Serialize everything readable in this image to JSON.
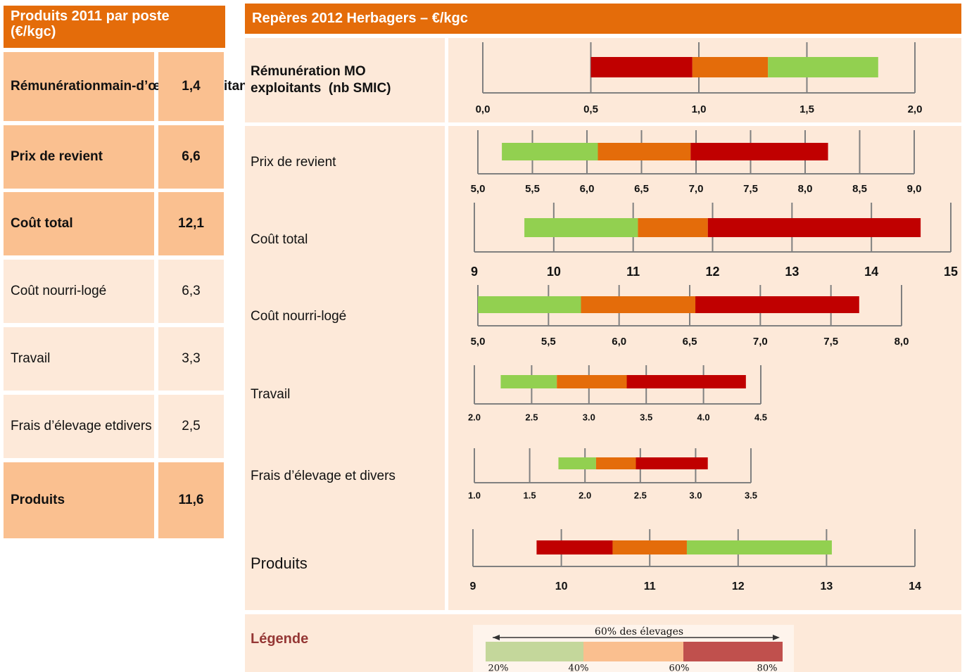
{
  "left_table": {
    "title": [
      "Produits 2011 par poste",
      "(€/kgc)"
    ],
    "rows": [
      {
        "label": [
          "Rémunération",
          "main-d’œuvre",
          "exploitants",
          " (nb SMIC)"
        ],
        "value": "1,4",
        "emphasis": true
      },
      {
        "label": "Prix de revient",
        "value": "6,6",
        "emphasis": true
      },
      {
        "label": "Coût total",
        "value": "12,1",
        "emphasis": true
      },
      {
        "label": "Coût nourri-logé",
        "value": "6,3",
        "emphasis": false
      },
      {
        "label": "Travail",
        "value": "3,3",
        "emphasis": false
      },
      {
        "label": [
          "Frais d’élevage et",
          "divers"
        ],
        "value": "2,5",
        "emphasis": false
      },
      {
        "label": "Produits",
        "value": "11,6",
        "emphasis": true
      }
    ]
  },
  "right_panel": {
    "title": "Repères 2012 Herbagers – €/kgc",
    "charts": [
      {
        "type": "bar",
        "label": [
          "Rémunération MO",
          "exploitants  (nb SMIC)"
        ],
        "emphasis": true,
        "xlim": [
          0,
          2
        ],
        "xticks": [
          {
            "value": 0,
            "label": "0,0"
          },
          {
            "value": 0.5,
            "label": "0,5"
          },
          {
            "value": 1,
            "label": "1,0"
          },
          {
            "value": 1.5,
            "label": "1,5"
          },
          {
            "value": 2,
            "label": "2,0"
          }
        ],
        "boundaries": [
          0.5,
          0.97,
          1.32,
          1.83
        ],
        "colors": [
          "#c00000",
          "#e46c0a",
          "#92d050"
        ]
      },
      {
        "type": "bar",
        "label": "Prix de revient",
        "emphasis": false,
        "xlim": [
          5,
          9
        ],
        "xticks": [
          {
            "value": 5,
            "label": "5,0"
          },
          {
            "value": 5.5,
            "label": "5,5"
          },
          {
            "value": 6,
            "label": "6,0"
          },
          {
            "value": 6.5,
            "label": "6,5"
          },
          {
            "value": 7,
            "label": "7,0"
          },
          {
            "value": 7.5,
            "label": "7,5"
          },
          {
            "value": 8,
            "label": "8,0"
          },
          {
            "value": 8.5,
            "label": "8,5"
          },
          {
            "value": 9,
            "label": "9,0"
          }
        ],
        "boundaries": [
          5.22,
          6.1,
          6.95,
          8.21
        ],
        "colors": [
          "#92d050",
          "#e46c0a",
          "#c00000"
        ]
      },
      {
        "type": "bar",
        "label": "Coût total",
        "emphasis": false,
        "xlim": [
          9,
          15
        ],
        "xticks": [
          9,
          10,
          11,
          12,
          13,
          14,
          15
        ],
        "boundaries": [
          9.63,
          11.06,
          11.94,
          14.62
        ],
        "colors": [
          "#92d050",
          "#e46c0a",
          "#c00000"
        ]
      },
      {
        "type": "bar",
        "label": "Coût nourri-logé",
        "emphasis": false,
        "xlim": [
          5,
          8
        ],
        "xticks": [
          {
            "value": 5,
            "label": "5,0"
          },
          {
            "value": 5.5,
            "label": "5,5"
          },
          {
            "value": 6,
            "label": "6,0"
          },
          {
            "value": 6.5,
            "label": "6,5"
          },
          {
            "value": 7,
            "label": "7,0"
          },
          {
            "value": 7.5,
            "label": "7,5"
          },
          {
            "value": 8,
            "label": "8,0"
          }
        ],
        "boundaries": [
          5.0,
          5.73,
          6.54,
          7.7
        ],
        "colors": [
          "#92d050",
          "#e46c0a",
          "#c00000"
        ]
      },
      {
        "type": "bar",
        "label": "Travail",
        "emphasis": false,
        "xlim": [
          2,
          4.5
        ],
        "xticks": [
          {
            "value": 2,
            "label": "2.0"
          },
          {
            "value": 2.5,
            "label": "2.5"
          },
          {
            "value": 3,
            "label": "3.0"
          },
          {
            "value": 3.5,
            "label": "3.5"
          },
          {
            "value": 4,
            "label": "4.0"
          },
          {
            "value": 4.5,
            "label": "4.5"
          }
        ],
        "boundaries": [
          2.23,
          2.72,
          3.33,
          4.37
        ],
        "colors": [
          "#92d050",
          "#e46c0a",
          "#c00000"
        ]
      },
      {
        "type": "bar",
        "label": "Frais d’élevage et divers",
        "emphasis": false,
        "xlim": [
          1,
          3.5
        ],
        "xticks": [
          {
            "value": 1,
            "label": "1.0"
          },
          {
            "value": 1.5,
            "label": "1.5"
          },
          {
            "value": 2,
            "label": "2.0"
          },
          {
            "value": 2.5,
            "label": "2.5"
          },
          {
            "value": 3,
            "label": "3.0"
          },
          {
            "value": 3.5,
            "label": "3.5"
          }
        ],
        "boundaries": [
          1.76,
          2.1,
          2.46,
          3.11
        ],
        "colors": [
          "#92d050",
          "#e46c0a",
          "#c00000"
        ]
      },
      {
        "type": "bar",
        "label": "Produits",
        "emphasis": false,
        "xlim": [
          9,
          14
        ],
        "xticks": [
          9,
          10,
          11,
          12,
          13,
          14
        ],
        "boundaries": [
          9.72,
          10.58,
          11.42,
          13.06
        ],
        "colors": [
          "#c00000",
          "#e46c0a",
          "#92d050"
        ]
      }
    ]
  },
  "legend": {
    "label": "Légende",
    "caption": "60% des élevages",
    "colors": [
      "#c4d79b",
      "#fabf8f",
      "#c0504d"
    ],
    "percent_labels": [
      "20%",
      "40%",
      "60%",
      "80%"
    ]
  }
}
